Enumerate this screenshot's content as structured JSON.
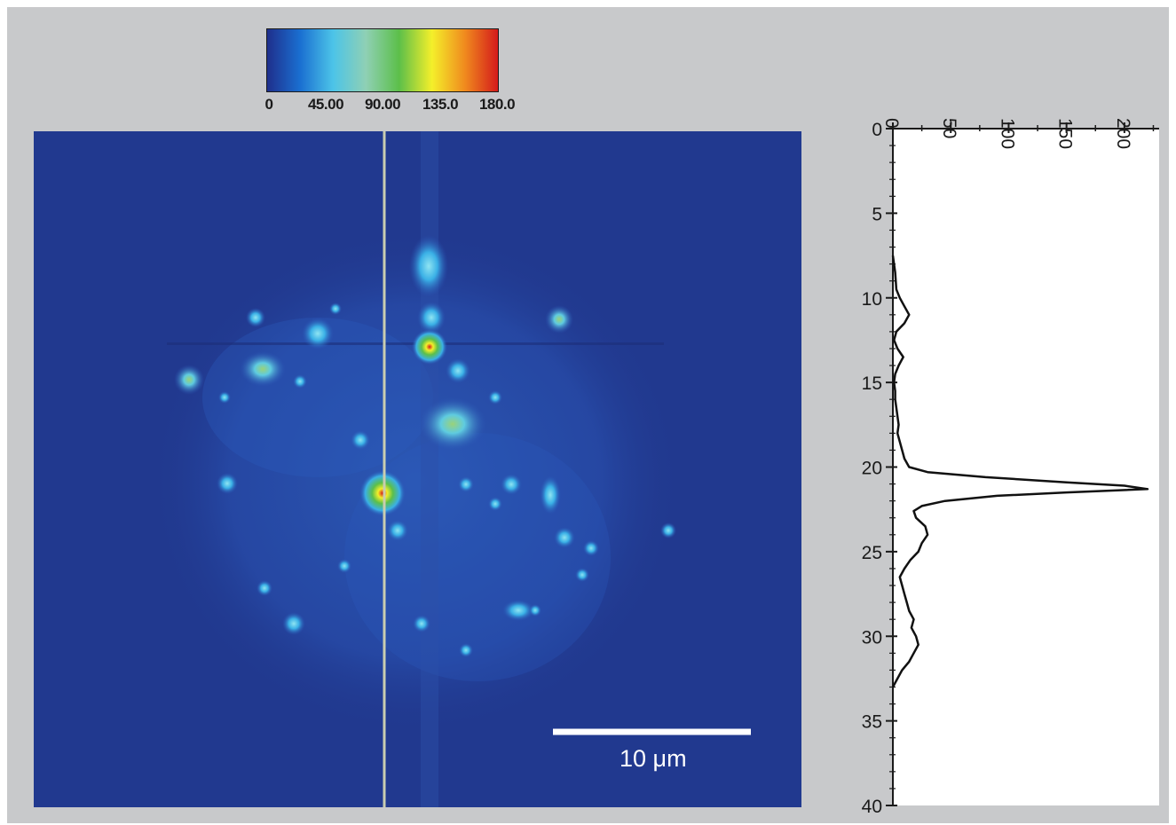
{
  "colorbar": {
    "ticks": [
      "0",
      "45.00",
      "90.00",
      "135.0",
      "180.0"
    ],
    "colors": [
      "#1f2f8c",
      "#1a6fd1",
      "#4cc4e8",
      "#8fd0b4",
      "#5cbf4a",
      "#f4ef2a",
      "#f08a1e",
      "#d41b1b"
    ]
  },
  "scalebar": {
    "label": "10 μm"
  },
  "chart_data": {
    "type": "line",
    "title": "",
    "xlabel": "",
    "ylabel": "",
    "xlim": [
      0,
      230
    ],
    "ylim": [
      40,
      0
    ],
    "x_ticks": [
      "0",
      "50",
      "100",
      "150",
      "200"
    ],
    "y_ticks": [
      "0",
      "5",
      "10",
      "15",
      "20",
      "25",
      "30",
      "35",
      "40"
    ],
    "series": [
      {
        "depth": [
          7.5,
          8.5,
          9.5,
          10,
          10.5,
          11,
          11.5,
          12,
          12.5,
          13,
          13.5,
          14,
          14.5,
          15,
          15.5,
          16,
          16.5,
          17,
          17.5,
          18,
          18.5,
          19,
          19.5,
          20,
          20.3,
          20.6,
          20.9,
          21.1,
          21.3,
          21.5,
          21.7,
          22,
          22.3,
          22.6,
          23,
          23.5,
          24,
          24.5,
          25,
          25.5,
          26,
          26.5,
          27,
          27.5,
          28,
          28.5,
          29,
          29.5,
          30,
          30.5,
          31,
          31.5,
          32,
          32.5,
          33
        ],
        "intensity": [
          0,
          2,
          3,
          6,
          10,
          14,
          10,
          3,
          1,
          4,
          9,
          5,
          2,
          1,
          2,
          2,
          3,
          4,
          5,
          4,
          6,
          8,
          10,
          14,
          30,
          80,
          150,
          200,
          220,
          150,
          90,
          45,
          25,
          18,
          20,
          28,
          30,
          25,
          22,
          15,
          10,
          6,
          8,
          10,
          12,
          14,
          18,
          16,
          20,
          22,
          18,
          14,
          8,
          4,
          0
        ]
      }
    ]
  }
}
